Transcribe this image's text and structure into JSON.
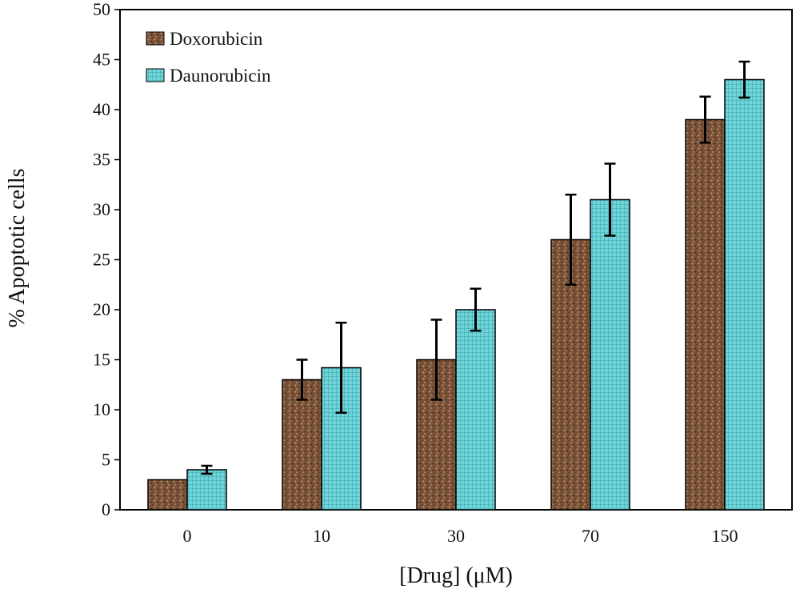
{
  "chart_data": {
    "type": "bar",
    "title": "",
    "xlabel": "[Drug] (μM)",
    "ylabel": "% Apoptotic cells",
    "categories": [
      "0",
      "10",
      "30",
      "70",
      "150"
    ],
    "ylim": [
      0,
      50
    ],
    "yticks": [
      0,
      5,
      10,
      15,
      20,
      25,
      30,
      35,
      40,
      45,
      50
    ],
    "grid": false,
    "legend_placement": "top-left",
    "series": [
      {
        "name": "Doxorubicin",
        "color": "#7a5238",
        "pattern": "speckled brown",
        "values": [
          3,
          13,
          15,
          27,
          39
        ],
        "error": [
          0,
          2,
          4,
          4.5,
          2.3
        ]
      },
      {
        "name": "Daunorubicin",
        "color": "#6fd3d8",
        "pattern": "cyan grid",
        "values": [
          4,
          14.2,
          20,
          31,
          43
        ],
        "error": [
          0.4,
          4.5,
          2.1,
          3.6,
          1.8
        ]
      }
    ]
  }
}
